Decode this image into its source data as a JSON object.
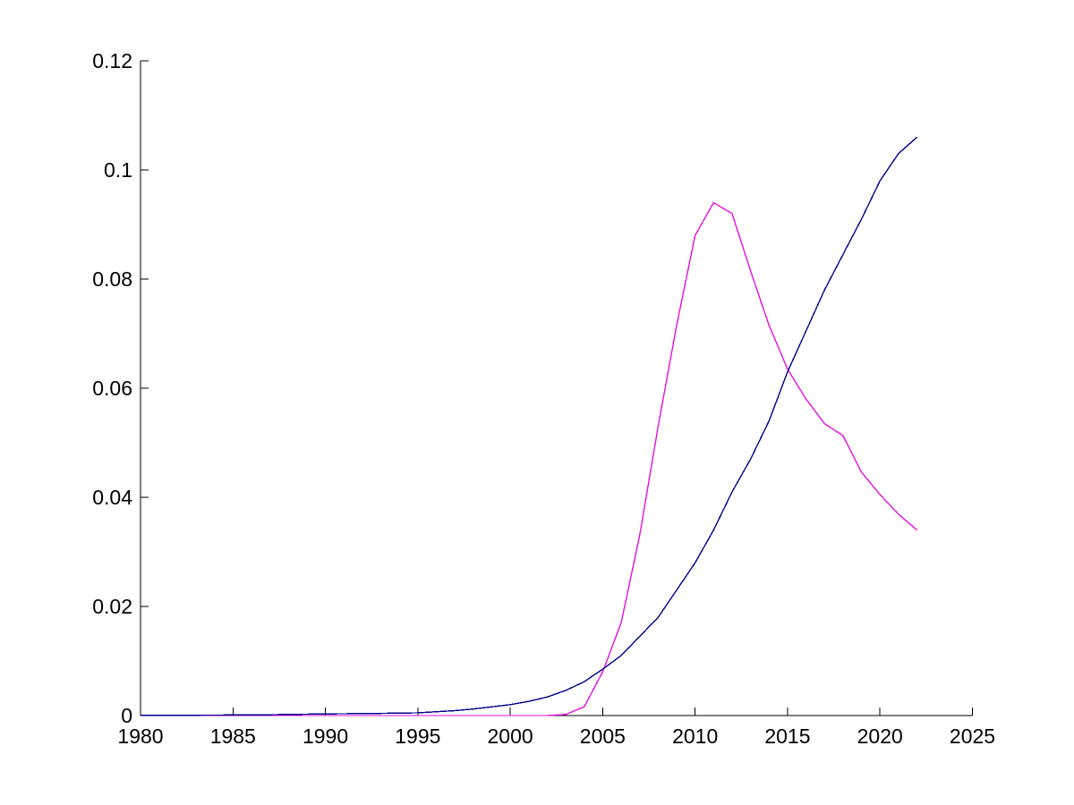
{
  "figure": {
    "background_color": "#ffffff",
    "axis_color": "#000000"
  },
  "chart_data": {
    "type": "line",
    "title": "",
    "xlabel": "",
    "ylabel": "",
    "grid": false,
    "legend_position": "none",
    "xlim": [
      1980,
      2025
    ],
    "ylim": [
      0,
      0.12
    ],
    "x_ticks": {
      "values": [
        1980,
        1985,
        1990,
        1995,
        2000,
        2005,
        2010,
        2015,
        2020,
        2025
      ],
      "labels": [
        "1980",
        "1985",
        "1990",
        "1995",
        "2000",
        "2005",
        "2010",
        "2015",
        "2020",
        "2025"
      ]
    },
    "y_ticks": {
      "values": [
        0,
        0.02,
        0.04,
        0.06,
        0.08,
        0.1,
        0.12
      ],
      "labels": [
        "0",
        "0.02",
        "0.04",
        "0.06",
        "0.08",
        "0.1",
        "0.12"
      ]
    },
    "x": [
      1980,
      1981,
      1982,
      1983,
      1984,
      1985,
      1986,
      1987,
      1988,
      1989,
      1990,
      1991,
      1992,
      1993,
      1994,
      1995,
      1996,
      1997,
      1998,
      1999,
      2000,
      2001,
      2002,
      2003,
      2004,
      2005,
      2006,
      2007,
      2008,
      2009,
      2010,
      2011,
      2012,
      2013,
      2014,
      2015,
      2016,
      2017,
      2018,
      2019,
      2020,
      2021,
      2022
    ],
    "series": [
      {
        "name": "magenta_line",
        "color": "#E512DC",
        "values": [
          0,
          0,
          0,
          0,
          0,
          0,
          0,
          0,
          0,
          0,
          0,
          0,
          0,
          0,
          0,
          0,
          0,
          0,
          0,
          0,
          0,
          0,
          0,
          0.0002,
          0.0016,
          0.008,
          0.017,
          0.033,
          0.053,
          0.0715,
          0.088,
          0.094,
          0.092,
          0.0815,
          0.0715,
          0.0635,
          0.058,
          0.0535,
          0.0513,
          0.0446,
          0.0405,
          0.0369,
          0.034
        ]
      },
      {
        "name": "dark_blue_line",
        "color": "#00008B",
        "values": [
          5e-05,
          5e-05,
          6e-05,
          7e-05,
          8e-05,
          0.0001,
          0.00012,
          0.00015,
          0.0002,
          0.00025,
          0.0003,
          0.00033,
          0.00037,
          0.0004,
          0.00045,
          0.0005,
          0.0007,
          0.0009,
          0.0012,
          0.0016,
          0.002,
          0.0026,
          0.0034,
          0.0046,
          0.0062,
          0.0085,
          0.011,
          0.0145,
          0.018,
          0.023,
          0.028,
          0.034,
          0.041,
          0.047,
          0.054,
          0.063,
          0.0705,
          0.078,
          0.0845,
          0.091,
          0.098,
          0.103,
          0.106
        ]
      }
    ]
  }
}
